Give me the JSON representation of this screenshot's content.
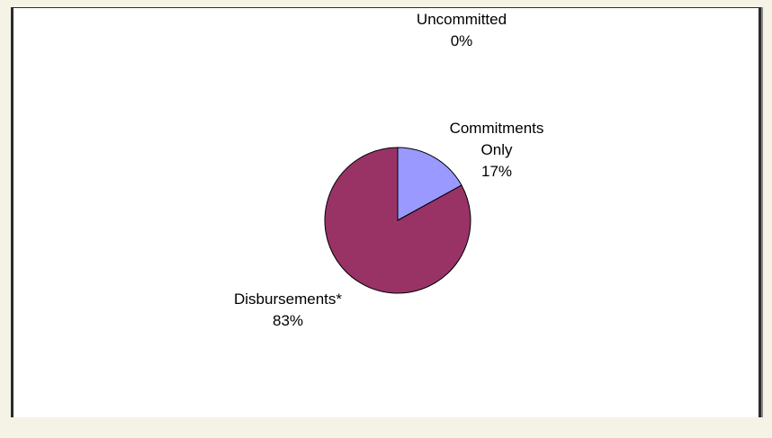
{
  "chart_data": {
    "type": "pie",
    "categories": [
      "Uncommitted",
      "Commitments Only",
      "Disbursements*"
    ],
    "values": [
      0,
      17,
      83
    ],
    "value_labels": [
      "0%",
      "17%",
      "83%"
    ],
    "label_lines": [
      [
        "Uncommitted",
        "0%"
      ],
      [
        "Commitments",
        "Only",
        "17%"
      ],
      [
        "Disbursements*",
        "83%"
      ]
    ],
    "colors": [
      "#ffffcc",
      "#9999ff",
      "#993366"
    ],
    "start_angle_deg": 0,
    "direction": "clockwise",
    "legend": "none"
  }
}
